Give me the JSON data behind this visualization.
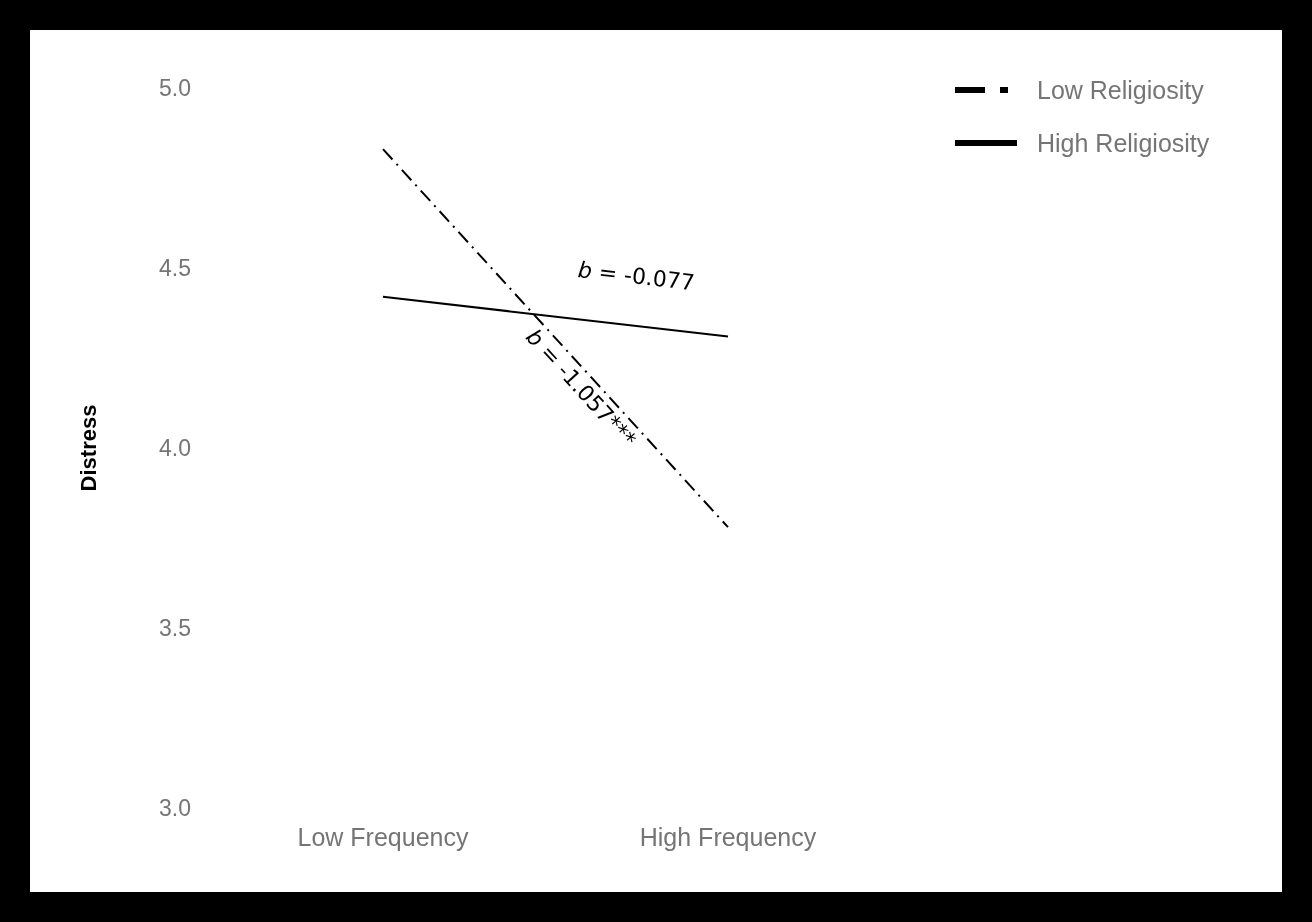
{
  "chart_data": {
    "type": "line",
    "ylabel": "Distress",
    "categories": [
      "Low Frequency",
      "High Frequency"
    ],
    "series": [
      {
        "name": "Low Religiosity",
        "color": "#000000",
        "line_style": "dashdot",
        "values": [
          4.83,
          3.78
        ]
      },
      {
        "name": "High Religiosity",
        "color": "#000000",
        "line_style": "solid",
        "values": [
          4.42,
          4.31
        ]
      }
    ],
    "ylim": [
      3,
      5
    ],
    "yticks": [
      {
        "value": 3,
        "label": "3.0"
      },
      3.5,
      {
        "value": 4,
        "label": "4.0"
      },
      4.5,
      {
        "value": 5,
        "label": "5.0"
      }
    ],
    "grid": false,
    "legend": "top right",
    "marker": "none",
    "annotations": [
      "b = -0.077",
      "b = -1.057***"
    ]
  }
}
